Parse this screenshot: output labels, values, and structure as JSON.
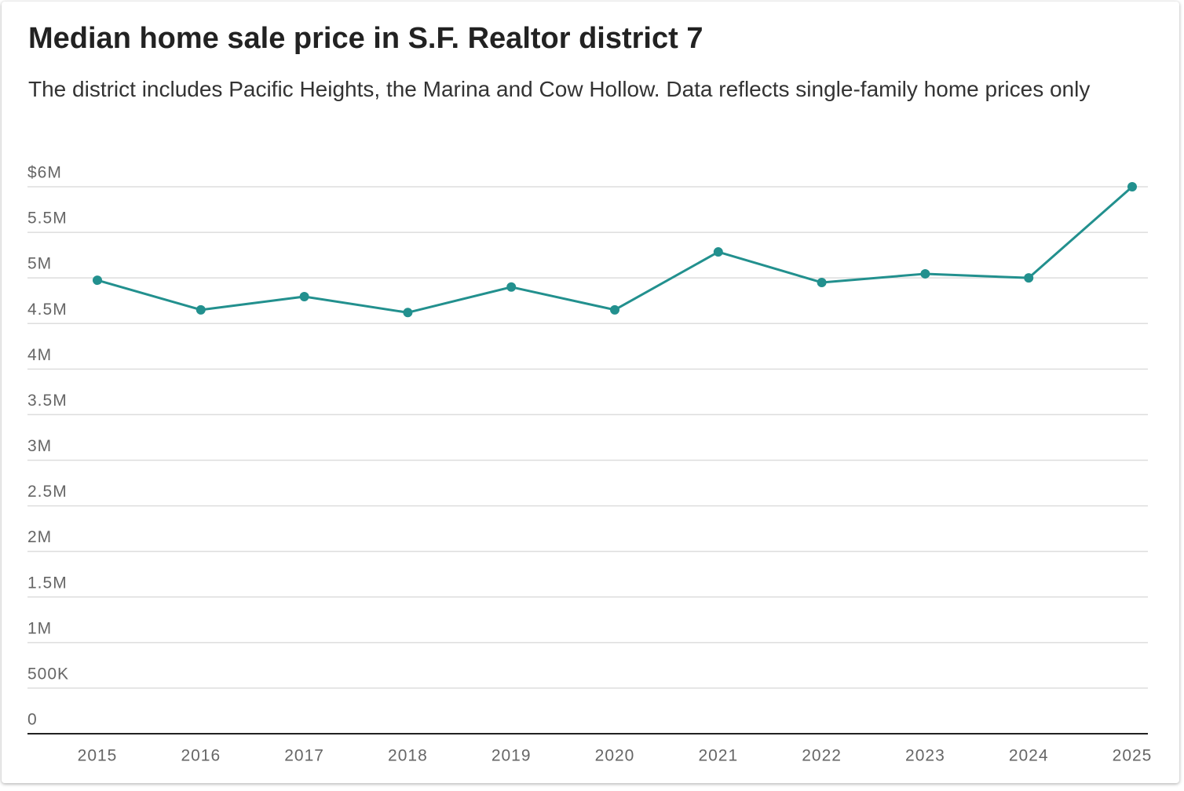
{
  "chart_data": {
    "type": "line",
    "title": "Median home sale price in S.F. Realtor district 7",
    "subtitle": "The district includes Pacific Heights, the Marina and Cow Hollow. Data reflects single-family home prices only",
    "categories": [
      "2015",
      "2016",
      "2017",
      "2018",
      "2019",
      "2020",
      "2021",
      "2022",
      "2023",
      "2024",
      "2025"
    ],
    "values": [
      4975000,
      4650000,
      4795000,
      4620000,
      4900000,
      4650000,
      5285000,
      4950000,
      5045000,
      5000000,
      6000000
    ],
    "color": "#22908e",
    "ylim": [
      0,
      6000000
    ],
    "yticks": [
      0,
      {
        "value": 500000,
        "label": "500K"
      },
      {
        "value": 1000000,
        "label": "1M"
      },
      {
        "value": 1500000,
        "label": "1.5M"
      },
      {
        "value": 2000000,
        "label": "2M"
      },
      {
        "value": 2500000,
        "label": "2.5M"
      },
      {
        "value": 3000000,
        "label": "3M"
      },
      {
        "value": 3500000,
        "label": "3.5M"
      },
      {
        "value": 4000000,
        "label": "4M"
      },
      {
        "value": 4500000,
        "label": "4.5M"
      },
      {
        "value": 5000000,
        "label": "5M"
      },
      {
        "value": 5500000,
        "label": "5.5M"
      },
      {
        "value": 6000000,
        "label": "$6M"
      }
    ],
    "grid": true
  }
}
